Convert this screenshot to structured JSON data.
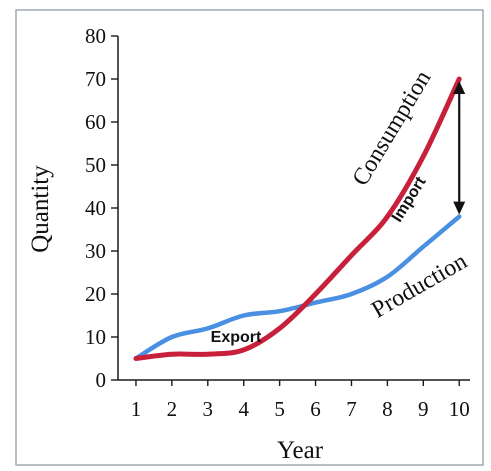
{
  "chart_data": {
    "type": "line",
    "title": "",
    "xlabel": "Year",
    "ylabel": "Quantity",
    "x": [
      1,
      2,
      3,
      4,
      5,
      6,
      7,
      8,
      9,
      10
    ],
    "xticks": [
      "1",
      "2",
      "3",
      "4",
      "5",
      "6",
      "7",
      "8",
      "9",
      "10"
    ],
    "yticks": [
      "0",
      "10",
      "20",
      "30",
      "40",
      "50",
      "60",
      "70",
      "80"
    ],
    "xlim": [
      0.5,
      10.3
    ],
    "ylim": [
      0,
      80
    ],
    "grid": false,
    "legend": "none",
    "series": [
      {
        "name": "Production",
        "color": "#4a90e2",
        "values": [
          5,
          10,
          12,
          15,
          16,
          18,
          20,
          24,
          31,
          38
        ]
      },
      {
        "name": "Consumption",
        "color": "#c8203a",
        "values": [
          5,
          6,
          6,
          7,
          12,
          20,
          29,
          38,
          52,
          70
        ]
      }
    ],
    "annotations": {
      "export": "Export",
      "import": "Import"
    },
    "arrow_color": "#111111"
  }
}
